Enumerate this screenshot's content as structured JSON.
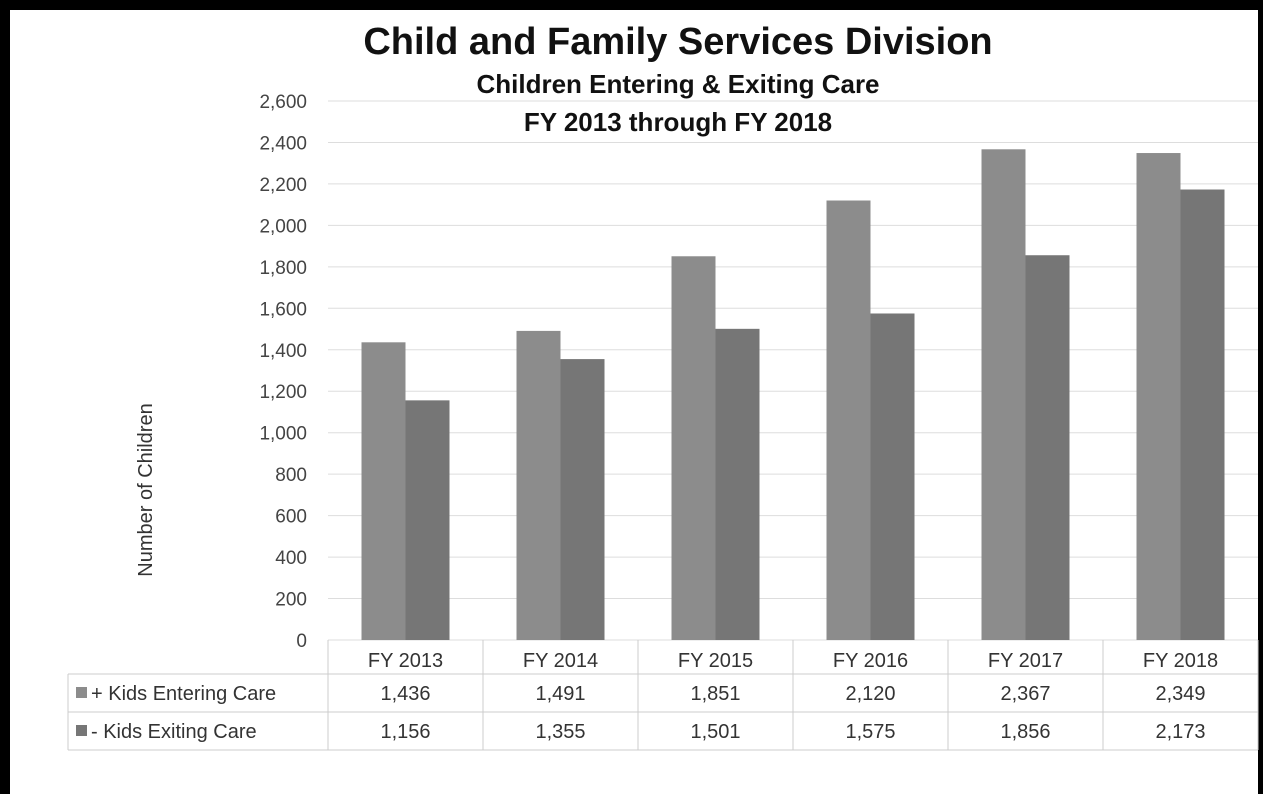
{
  "chart_data": {
    "type": "bar",
    "title": "Child and Family Services Division",
    "subtitle_1": "Children Entering & Exiting Care",
    "subtitle_2": "FY 2013 through FY 2018",
    "ylabel": "Number of Children",
    "ylim": [
      0,
      2600
    ],
    "yticks": [
      "0",
      "200",
      "400",
      "600",
      "800",
      "1,000",
      "1,200",
      "1,400",
      "1,600",
      "1,800",
      "2,000",
      "2,200",
      "2,400",
      "2,600"
    ],
    "categories": [
      "FY 2013",
      "FY 2014",
      "FY 2015",
      "FY 2016",
      "FY 2017",
      "FY 2018"
    ],
    "grid": true,
    "legend": "data-table",
    "series": [
      {
        "name": "+ Kids Entering Care",
        "values": [
          1436,
          1491,
          1851,
          2120,
          2367,
          2349
        ],
        "labels": [
          "1,436",
          "1,491",
          "1,851",
          "2,120",
          "2,367",
          "2,349"
        ],
        "color": "#8c8c8c"
      },
      {
        "name": "- Kids Exiting Care",
        "values": [
          1156,
          1355,
          1501,
          1575,
          1856,
          2173
        ],
        "labels": [
          "1,156",
          "1,355",
          "1,501",
          "1,575",
          "1,856",
          "2,173"
        ],
        "color": "#767676"
      }
    ]
  }
}
